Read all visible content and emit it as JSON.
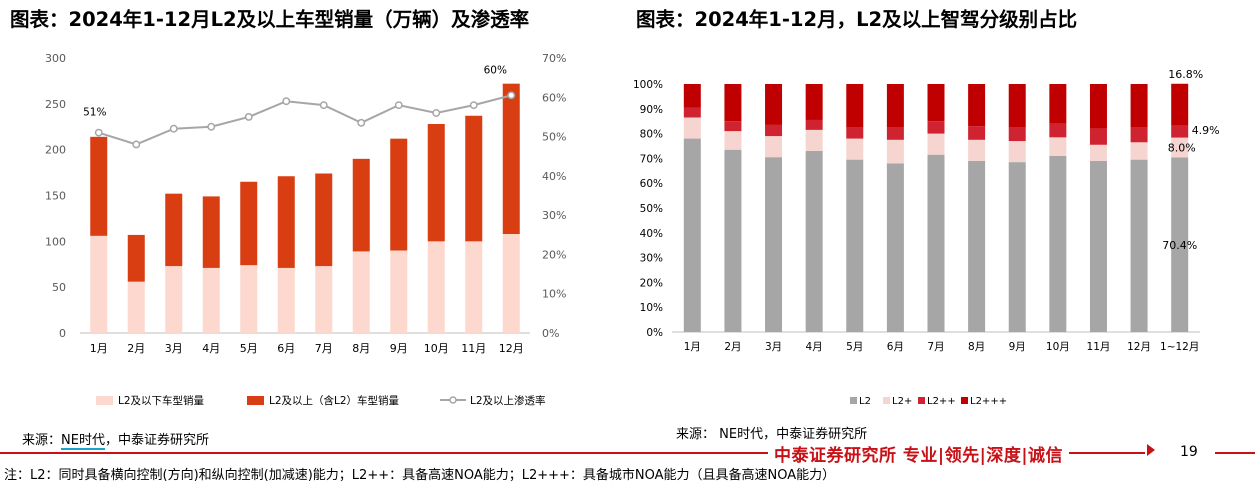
{
  "left_title": "图表：2024年1-12月L2及以上车型销量（万辆）及渗透率",
  "right_title": "图表：2024年1-12月，L2及以上智驾分级别占比",
  "left_source_prefix": "来源：",
  "left_source_ne": "NE时代",
  "left_source_rest": "，中泰证券研究所",
  "right_source": "来源： NE时代，中泰证券研究所",
  "footer_brand": "中泰证券研究所 专业|领先|深度|诚信",
  "page_number": "19",
  "footnote": "注：L2：同时具备横向控制(方向)和纵向控制(加减速)能力；L2++：具备高速NOA能力；L2+++：具备城市NOA能力（且具备高速NOA能力）",
  "colors": {
    "light_pink": "#fcd8cf",
    "orange_red": "#d93d12",
    "line_gray": "#a6a6a6",
    "gray": "#a6a6a6",
    "pink": "#f6d4d0",
    "red_mid": "#cf2331",
    "red_dark": "#c00000",
    "brand_red": "#c81016"
  },
  "chart_data": [
    {
      "type": "bar",
      "stacked": true,
      "categories": [
        "1月",
        "2月",
        "3月",
        "4月",
        "5月",
        "6月",
        "7月",
        "8月",
        "9月",
        "10月",
        "11月",
        "12月"
      ],
      "series": [
        {
          "name": "L2及以下车型销量",
          "values": [
            106,
            56,
            73,
            71,
            74,
            71,
            73,
            89,
            90,
            100,
            100,
            108
          ]
        },
        {
          "name": "L2及以上（含L2）车型销量",
          "values": [
            108,
            51,
            79,
            78,
            91,
            100,
            101,
            101,
            122,
            128,
            137,
            164
          ]
        }
      ],
      "line_series": {
        "name": "L2及以上渗透率",
        "values": [
          51,
          48,
          52,
          52.5,
          55,
          59,
          58,
          53.5,
          58,
          56,
          58,
          60.5
        ]
      },
      "annotations": [
        "51%",
        "60%"
      ],
      "ylim": [
        0,
        300
      ],
      "yticks": [
        "0",
        "50",
        "100",
        "150",
        "200",
        "250",
        "300"
      ],
      "y2lim": [
        0,
        70
      ],
      "y2ticks": [
        "0%",
        "10%",
        "20%",
        "30%",
        "40%",
        "50%",
        "60%",
        "70%"
      ],
      "grid": false,
      "legend": "bottom"
    },
    {
      "type": "bar",
      "stacked": true,
      "percent": true,
      "categories": [
        "1月",
        "2月",
        "3月",
        "4月",
        "5月",
        "6月",
        "7月",
        "8月",
        "9月",
        "10月",
        "11月",
        "12月",
        "1~12月"
      ],
      "series": [
        {
          "name": "L2",
          "values": [
            78,
            73.5,
            70.5,
            73,
            69.5,
            68,
            71.5,
            69,
            68.5,
            71,
            69,
            69.5,
            70.4
          ]
        },
        {
          "name": "L2+",
          "values": [
            8.5,
            7.5,
            8.5,
            8.5,
            8.5,
            9.5,
            8.5,
            8.5,
            8.5,
            7.5,
            6.5,
            7,
            8.0
          ]
        },
        {
          "name": "L2++",
          "values": [
            4,
            4,
            4.5,
            4,
            4.5,
            5,
            5,
            5.5,
            5.5,
            5.5,
            6.5,
            6,
            4.9
          ]
        },
        {
          "name": "L2+++",
          "values": [
            9.5,
            15,
            16.5,
            14.5,
            17.5,
            17.5,
            15,
            17,
            17.5,
            16,
            18,
            17.5,
            16.8
          ]
        }
      ],
      "data_labels": [
        "70.4%",
        "8.0%",
        "4.9%",
        "16.8%"
      ],
      "ylim": [
        0,
        100
      ],
      "yticks": [
        "0%",
        "10%",
        "20%",
        "30%",
        "40%",
        "50%",
        "60%",
        "70%",
        "80%",
        "90%",
        "100%"
      ],
      "grid": false,
      "legend": "bottom"
    }
  ]
}
